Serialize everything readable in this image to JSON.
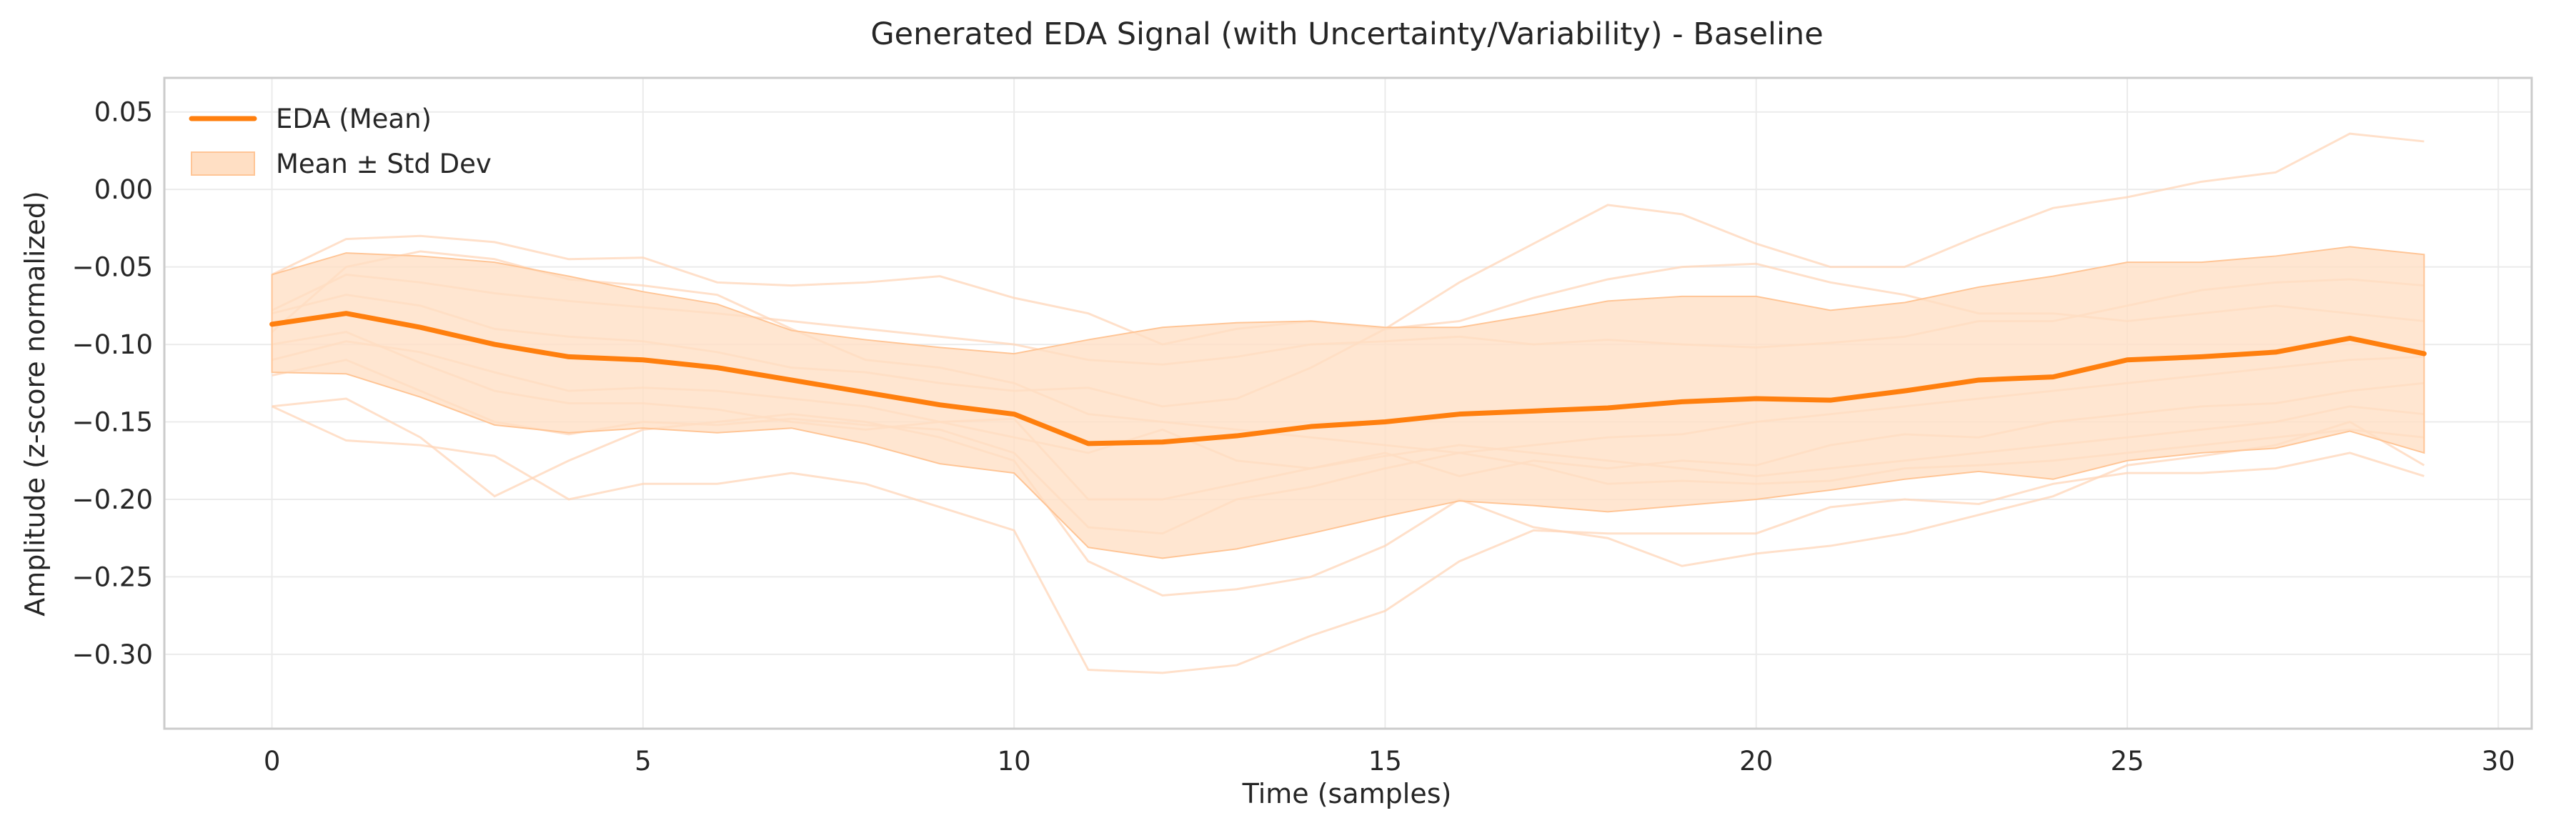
{
  "chart_data": {
    "type": "line",
    "title": "Generated EDA Signal (with Uncertainty/Variability) - Baseline",
    "xlabel": "Time (samples)",
    "ylabel": "Amplitude (z-score normalized)",
    "xlim": [
      -1.45,
      30.45
    ],
    "ylim": [
      -0.348,
      0.072
    ],
    "x_ticks": [
      0,
      5,
      10,
      15,
      20,
      25,
      30
    ],
    "y_ticks": [
      0.05,
      0.0,
      -0.05,
      -0.1,
      -0.15,
      -0.2,
      -0.25,
      -0.3
    ],
    "x_tick_labels": [
      "0",
      "5",
      "10",
      "15",
      "20",
      "25",
      "30"
    ],
    "y_tick_labels": [
      "0.05",
      "0.00",
      "−0.05",
      "−0.10",
      "−0.15",
      "−0.20",
      "−0.25",
      "−0.30"
    ],
    "grid": true,
    "legend_position": "top-left",
    "legend": [
      {
        "label": "EDA (Mean)",
        "kind": "line"
      },
      {
        "label": "Mean ± Std Dev",
        "kind": "band"
      }
    ],
    "colors": {
      "mean": "#ff7f0e",
      "band": "#ffdfc4",
      "band_edge": "#ffc596",
      "traces": "#ffd5b8"
    },
    "x": [
      0,
      1,
      2,
      3,
      4,
      5,
      6,
      7,
      8,
      9,
      10,
      11,
      12,
      13,
      14,
      15,
      16,
      17,
      18,
      19,
      20,
      21,
      22,
      23,
      24,
      25,
      26,
      27,
      28,
      29
    ],
    "series": [
      {
        "name": "EDA (Mean)",
        "role": "mean",
        "values": [
          -0.087,
          -0.08,
          -0.089,
          -0.1,
          -0.108,
          -0.11,
          -0.115,
          -0.123,
          -0.131,
          -0.139,
          -0.145,
          -0.164,
          -0.163,
          -0.159,
          -0.153,
          -0.15,
          -0.145,
          -0.143,
          -0.141,
          -0.137,
          -0.135,
          -0.136,
          -0.13,
          -0.123,
          -0.121,
          -0.11,
          -0.108,
          -0.105,
          -0.096,
          -0.106
        ]
      },
      {
        "name": "Mean ± Std Dev",
        "role": "band_upper",
        "values": [
          -0.055,
          -0.041,
          -0.043,
          -0.047,
          -0.056,
          -0.066,
          -0.074,
          -0.091,
          -0.097,
          -0.102,
          -0.106,
          -0.097,
          -0.089,
          -0.086,
          -0.085,
          -0.089,
          -0.089,
          -0.081,
          -0.072,
          -0.069,
          -0.069,
          -0.078,
          -0.073,
          -0.063,
          -0.056,
          -0.047,
          -0.047,
          -0.043,
          -0.037,
          -0.042
        ]
      },
      {
        "name": "Mean ± Std Dev",
        "role": "band_lower",
        "values": [
          -0.118,
          -0.119,
          -0.134,
          -0.152,
          -0.157,
          -0.154,
          -0.157,
          -0.154,
          -0.164,
          -0.177,
          -0.183,
          -0.231,
          -0.238,
          -0.232,
          -0.222,
          -0.211,
          -0.201,
          -0.204,
          -0.208,
          -0.204,
          -0.2,
          -0.194,
          -0.187,
          -0.182,
          -0.187,
          -0.175,
          -0.17,
          -0.167,
          -0.156,
          -0.17
        ]
      }
    ],
    "traces": [
      [
        -0.055,
        -0.032,
        -0.03,
        -0.034,
        -0.045,
        -0.044,
        -0.06,
        -0.062,
        -0.06,
        -0.056,
        -0.07,
        -0.08,
        -0.1,
        -0.09,
        -0.085,
        -0.09,
        -0.06,
        -0.035,
        -0.01,
        -0.016,
        -0.035,
        -0.05,
        -0.05,
        -0.03,
        -0.012,
        -0.005,
        0.005,
        0.011,
        0.036,
        0.031
      ],
      [
        -0.078,
        -0.055,
        -0.06,
        -0.067,
        -0.072,
        -0.076,
        -0.08,
        -0.085,
        -0.09,
        -0.095,
        -0.1,
        -0.11,
        -0.113,
        -0.108,
        -0.1,
        -0.098,
        -0.095,
        -0.1,
        -0.097,
        -0.1,
        -0.102,
        -0.099,
        -0.095,
        -0.085,
        -0.085,
        -0.075,
        -0.065,
        -0.06,
        -0.058,
        -0.062
      ],
      [
        -0.08,
        -0.068,
        -0.075,
        -0.09,
        -0.095,
        -0.098,
        -0.105,
        -0.115,
        -0.118,
        -0.125,
        -0.13,
        -0.128,
        -0.14,
        -0.135,
        -0.115,
        -0.09,
        -0.085,
        -0.07,
        -0.058,
        -0.05,
        -0.048,
        -0.06,
        -0.068,
        -0.08,
        -0.08,
        -0.085,
        -0.08,
        -0.075,
        -0.08,
        -0.085
      ],
      [
        -0.092,
        -0.05,
        -0.04,
        -0.045,
        -0.058,
        -0.062,
        -0.068,
        -0.09,
        -0.11,
        -0.115,
        -0.125,
        -0.145,
        -0.15,
        -0.155,
        -0.16,
        -0.165,
        -0.17,
        -0.165,
        -0.16,
        -0.158,
        -0.15,
        -0.145,
        -0.14,
        -0.135,
        -0.13,
        -0.125,
        -0.12,
        -0.115,
        -0.11,
        -0.108
      ],
      [
        -0.1,
        -0.092,
        -0.112,
        -0.13,
        -0.138,
        -0.138,
        -0.142,
        -0.15,
        -0.155,
        -0.15,
        -0.16,
        -0.17,
        -0.155,
        -0.175,
        -0.18,
        -0.17,
        -0.185,
        -0.175,
        -0.18,
        -0.175,
        -0.178,
        -0.165,
        -0.158,
        -0.16,
        -0.15,
        -0.145,
        -0.14,
        -0.138,
        -0.13,
        -0.125
      ],
      [
        -0.11,
        -0.098,
        -0.105,
        -0.118,
        -0.13,
        -0.128,
        -0.13,
        -0.135,
        -0.14,
        -0.15,
        -0.148,
        -0.2,
        -0.2,
        -0.19,
        -0.18,
        -0.172,
        -0.165,
        -0.17,
        -0.175,
        -0.18,
        -0.185,
        -0.18,
        -0.175,
        -0.17,
        -0.165,
        -0.16,
        -0.155,
        -0.15,
        -0.14,
        -0.145
      ],
      [
        -0.12,
        -0.11,
        -0.13,
        -0.15,
        -0.158,
        -0.15,
        -0.152,
        -0.148,
        -0.152,
        -0.155,
        -0.17,
        -0.218,
        -0.222,
        -0.2,
        -0.192,
        -0.18,
        -0.17,
        -0.178,
        -0.19,
        -0.188,
        -0.19,
        -0.188,
        -0.18,
        -0.178,
        -0.175,
        -0.17,
        -0.165,
        -0.16,
        -0.155,
        -0.16
      ],
      [
        -0.14,
        -0.135,
        -0.16,
        -0.198,
        -0.175,
        -0.155,
        -0.15,
        -0.145,
        -0.15,
        -0.16,
        -0.175,
        -0.24,
        -0.262,
        -0.258,
        -0.25,
        -0.23,
        -0.2,
        -0.218,
        -0.225,
        -0.243,
        -0.235,
        -0.23,
        -0.222,
        -0.21,
        -0.198,
        -0.178,
        -0.172,
        -0.165,
        -0.15,
        -0.178
      ],
      [
        -0.14,
        -0.162,
        -0.165,
        -0.172,
        -0.2,
        -0.19,
        -0.19,
        -0.183,
        -0.19,
        -0.205,
        -0.22,
        -0.31,
        -0.312,
        -0.307,
        -0.288,
        -0.272,
        -0.24,
        -0.22,
        -0.222,
        -0.222,
        -0.222,
        -0.205,
        -0.2,
        -0.203,
        -0.19,
        -0.183,
        -0.183,
        -0.18,
        -0.17,
        -0.185
      ]
    ]
  }
}
